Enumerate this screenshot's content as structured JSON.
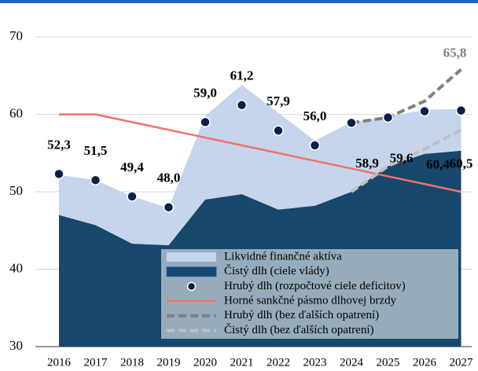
{
  "chart_data": {
    "type": "area",
    "x": [
      2016,
      2017,
      2018,
      2019,
      2020,
      2021,
      2022,
      2023,
      2024,
      2025,
      2026,
      2027
    ],
    "ylim": [
      30,
      70
    ],
    "yticks": [
      30,
      40,
      50,
      60,
      70
    ],
    "grid": true,
    "series": [
      {
        "name": "Likvidné finančné aktíva",
        "type": "area",
        "stacked": true,
        "color": "#c5d5ec",
        "values": [
          5.2,
          5.8,
          6.1,
          4.8,
          10.8,
          14.1,
          12.5,
          8.4,
          9.0,
          6.4,
          5.7,
          5.4
        ]
      },
      {
        "name": "Čistý dlh (ciele vlády)",
        "type": "area",
        "color": "#17476b",
        "values": [
          47.0,
          45.7,
          43.3,
          43.1,
          49.0,
          49.7,
          47.7,
          48.2,
          50.0,
          53.3,
          54.9,
          55.3
        ]
      },
      {
        "name": "Hrubý dlh (rozpočtové ciele deficitov)",
        "type": "scatter",
        "color": "#0d1f4a",
        "values": [
          52.3,
          51.5,
          49.4,
          48.0,
          59.0,
          61.2,
          57.9,
          56.0,
          58.9,
          59.6,
          60.4,
          60.5
        ],
        "value_labels": [
          "52,3",
          "51,5",
          "49,4",
          "48,0",
          "59,0",
          "61,2",
          "57,9",
          "56,0",
          "58,9",
          "59,6",
          "60,4",
          "60,5"
        ]
      },
      {
        "name": "Horné sankčné pásmo dlhovej brzdy",
        "type": "line",
        "color": "#f0736a",
        "values": [
          60,
          60,
          59,
          58,
          57,
          56,
          55,
          54,
          53,
          52,
          51,
          50
        ]
      },
      {
        "name": "Hrubý dlh (bez ďalších opatrení)",
        "type": "line",
        "dashed": true,
        "color": "#808080",
        "values": [
          null,
          null,
          null,
          null,
          null,
          null,
          null,
          null,
          58.9,
          59.6,
          61.7,
          65.8
        ],
        "value_labels": [
          null,
          null,
          null,
          null,
          null,
          null,
          null,
          null,
          null,
          null,
          null,
          "65,8"
        ]
      },
      {
        "name": "Čistý dlh (bez ďalších opatrení)",
        "type": "line",
        "dashed": true,
        "color": "#bfbfbf",
        "values": [
          null,
          null,
          null,
          null,
          null,
          null,
          null,
          null,
          50.0,
          53.3,
          55.5,
          58.0
        ]
      }
    ]
  }
}
